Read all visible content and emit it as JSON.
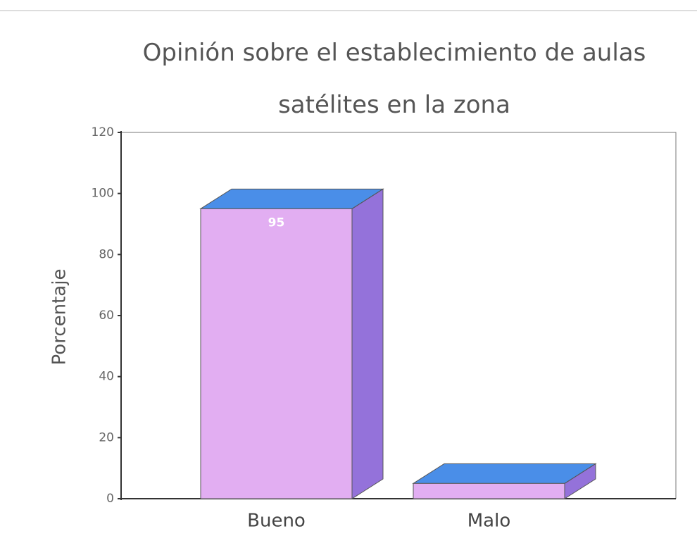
{
  "chart_data": {
    "type": "bar3d",
    "title": "Opinión sobre el establecimiento de aulas satélites en la zona",
    "y_label": "Porcentaje",
    "categories": [
      "Bueno",
      "Malo"
    ],
    "values": [
      95,
      5
    ],
    "value_labels": [
      "95",
      null
    ],
    "colors": {
      "front": "#e2aef2",
      "top": "#4a8ee8",
      "side": "#9472da"
    },
    "ylim": [
      0,
      120
    ],
    "yticks": [
      0,
      20,
      40,
      60,
      80,
      100,
      120
    ]
  }
}
